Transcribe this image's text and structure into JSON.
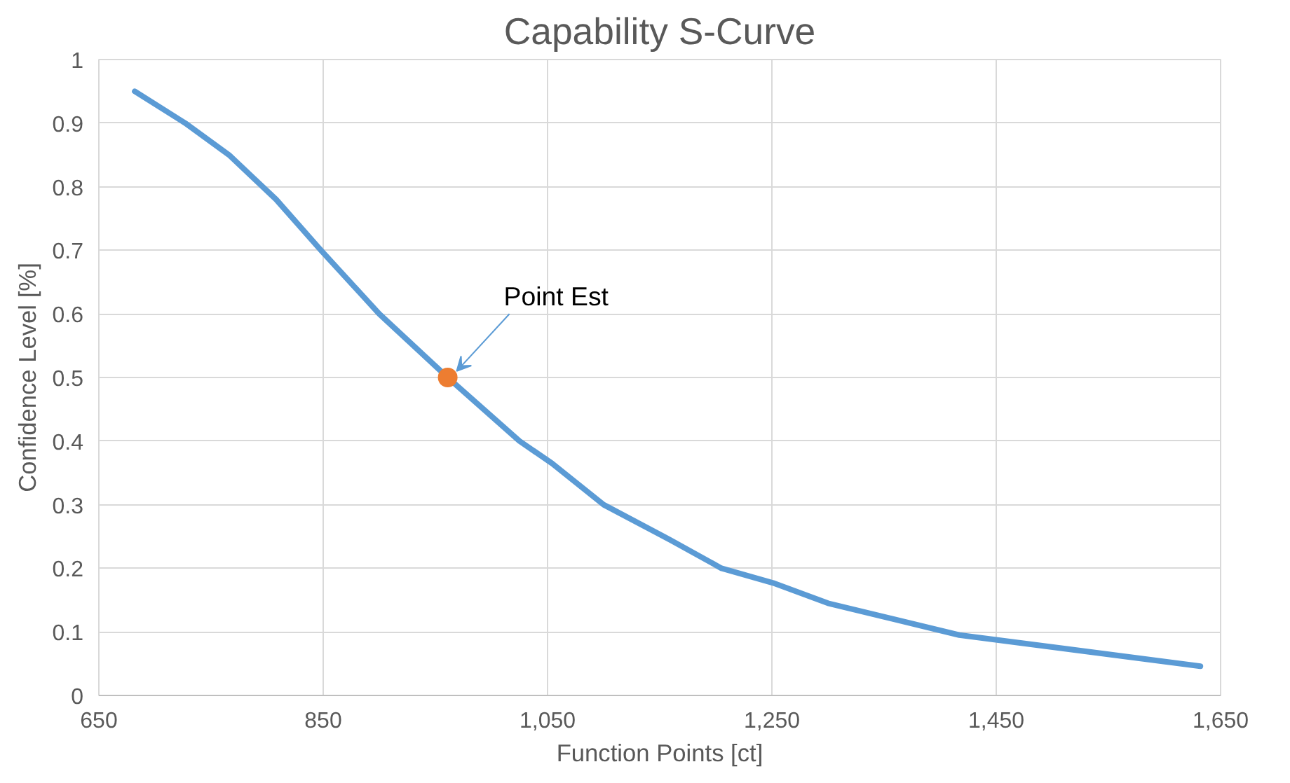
{
  "chart_data": {
    "type": "line",
    "title": "Capability S-Curve",
    "xlabel": "Function Points [ct]",
    "ylabel": "Confidence Level [%]",
    "xlim": [
      650,
      1650
    ],
    "xticks": [
      {
        "value": 650,
        "label": "650"
      },
      {
        "value": 850,
        "label": "850"
      },
      {
        "value": 1050,
        "label": "1,050"
      },
      {
        "value": 1250,
        "label": "1,250"
      },
      {
        "value": 1450,
        "label": "1,450"
      },
      {
        "value": 1650,
        "label": "1,650"
      }
    ],
    "ylim": [
      0,
      1
    ],
    "yticks": [
      0,
      0.1,
      0.2,
      0.3,
      0.4,
      0.5,
      0.6,
      0.7,
      0.8,
      0.9,
      1
    ],
    "grid": true,
    "series": [
      {
        "color": "#5b9bd5",
        "marker": "none",
        "x": [
          682,
          727,
          766,
          808,
          848,
          900,
          961,
          1025,
          1054,
          1100,
          1160,
          1205,
          1251,
          1300,
          1417,
          1632
        ],
        "values": [
          0.95,
          0.9,
          0.85,
          0.78,
          0.7,
          0.6,
          0.5,
          0.4,
          0.365,
          0.3,
          0.244,
          0.2,
          0.177,
          0.145,
          0.095,
          0.046
        ]
      },
      {
        "type": "scatter",
        "color": "#ed7d31",
        "marker": "circle",
        "x": [
          961
        ],
        "values": [
          0.5
        ]
      }
    ],
    "annotations": [
      {
        "text": "Point Est",
        "x": 961,
        "y": 0.5
      }
    ]
  }
}
